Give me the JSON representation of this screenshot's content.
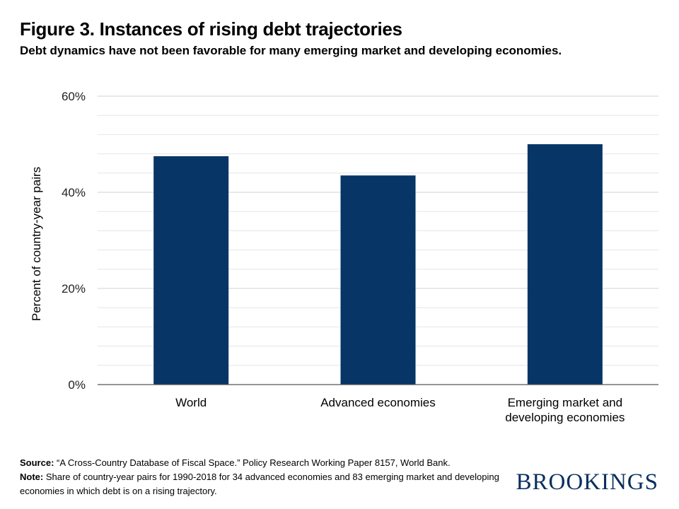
{
  "header": {
    "title": "Figure 3. Instances of rising debt trajectories",
    "subtitle": "Debt dynamics have not been favorable for many emerging market and developing economies."
  },
  "chart_data": {
    "type": "bar",
    "categories": [
      "World",
      "Advanced economies",
      "Emerging market and developing economies"
    ],
    "category_lines": [
      [
        "World"
      ],
      [
        "Advanced economies"
      ],
      [
        "Emerging market and",
        "developing economies"
      ]
    ],
    "values": [
      47.5,
      43.5,
      50
    ],
    "ylabel": "Percent of country-year pairs",
    "ylim": [
      0,
      60
    ],
    "yticks": [
      0,
      20,
      40,
      60
    ],
    "ytick_labels": [
      "0%",
      "20%",
      "40%",
      "60%"
    ],
    "grid": true,
    "bar_color": "#063566",
    "grid_color": "#dcdcdc"
  },
  "footer": {
    "source_label": "Source:",
    "source_text": " “A Cross-Country Database of Fiscal Space.” Policy Research Working Paper 8157, World Bank.",
    "note_label": "Note:",
    "note_text": " Share of country-year pairs for 1990-2018 for 34 advanced economies and 83 emerging market and developing economies in which debt is on a rising trajectory.",
    "logo": "BROOKINGS"
  }
}
